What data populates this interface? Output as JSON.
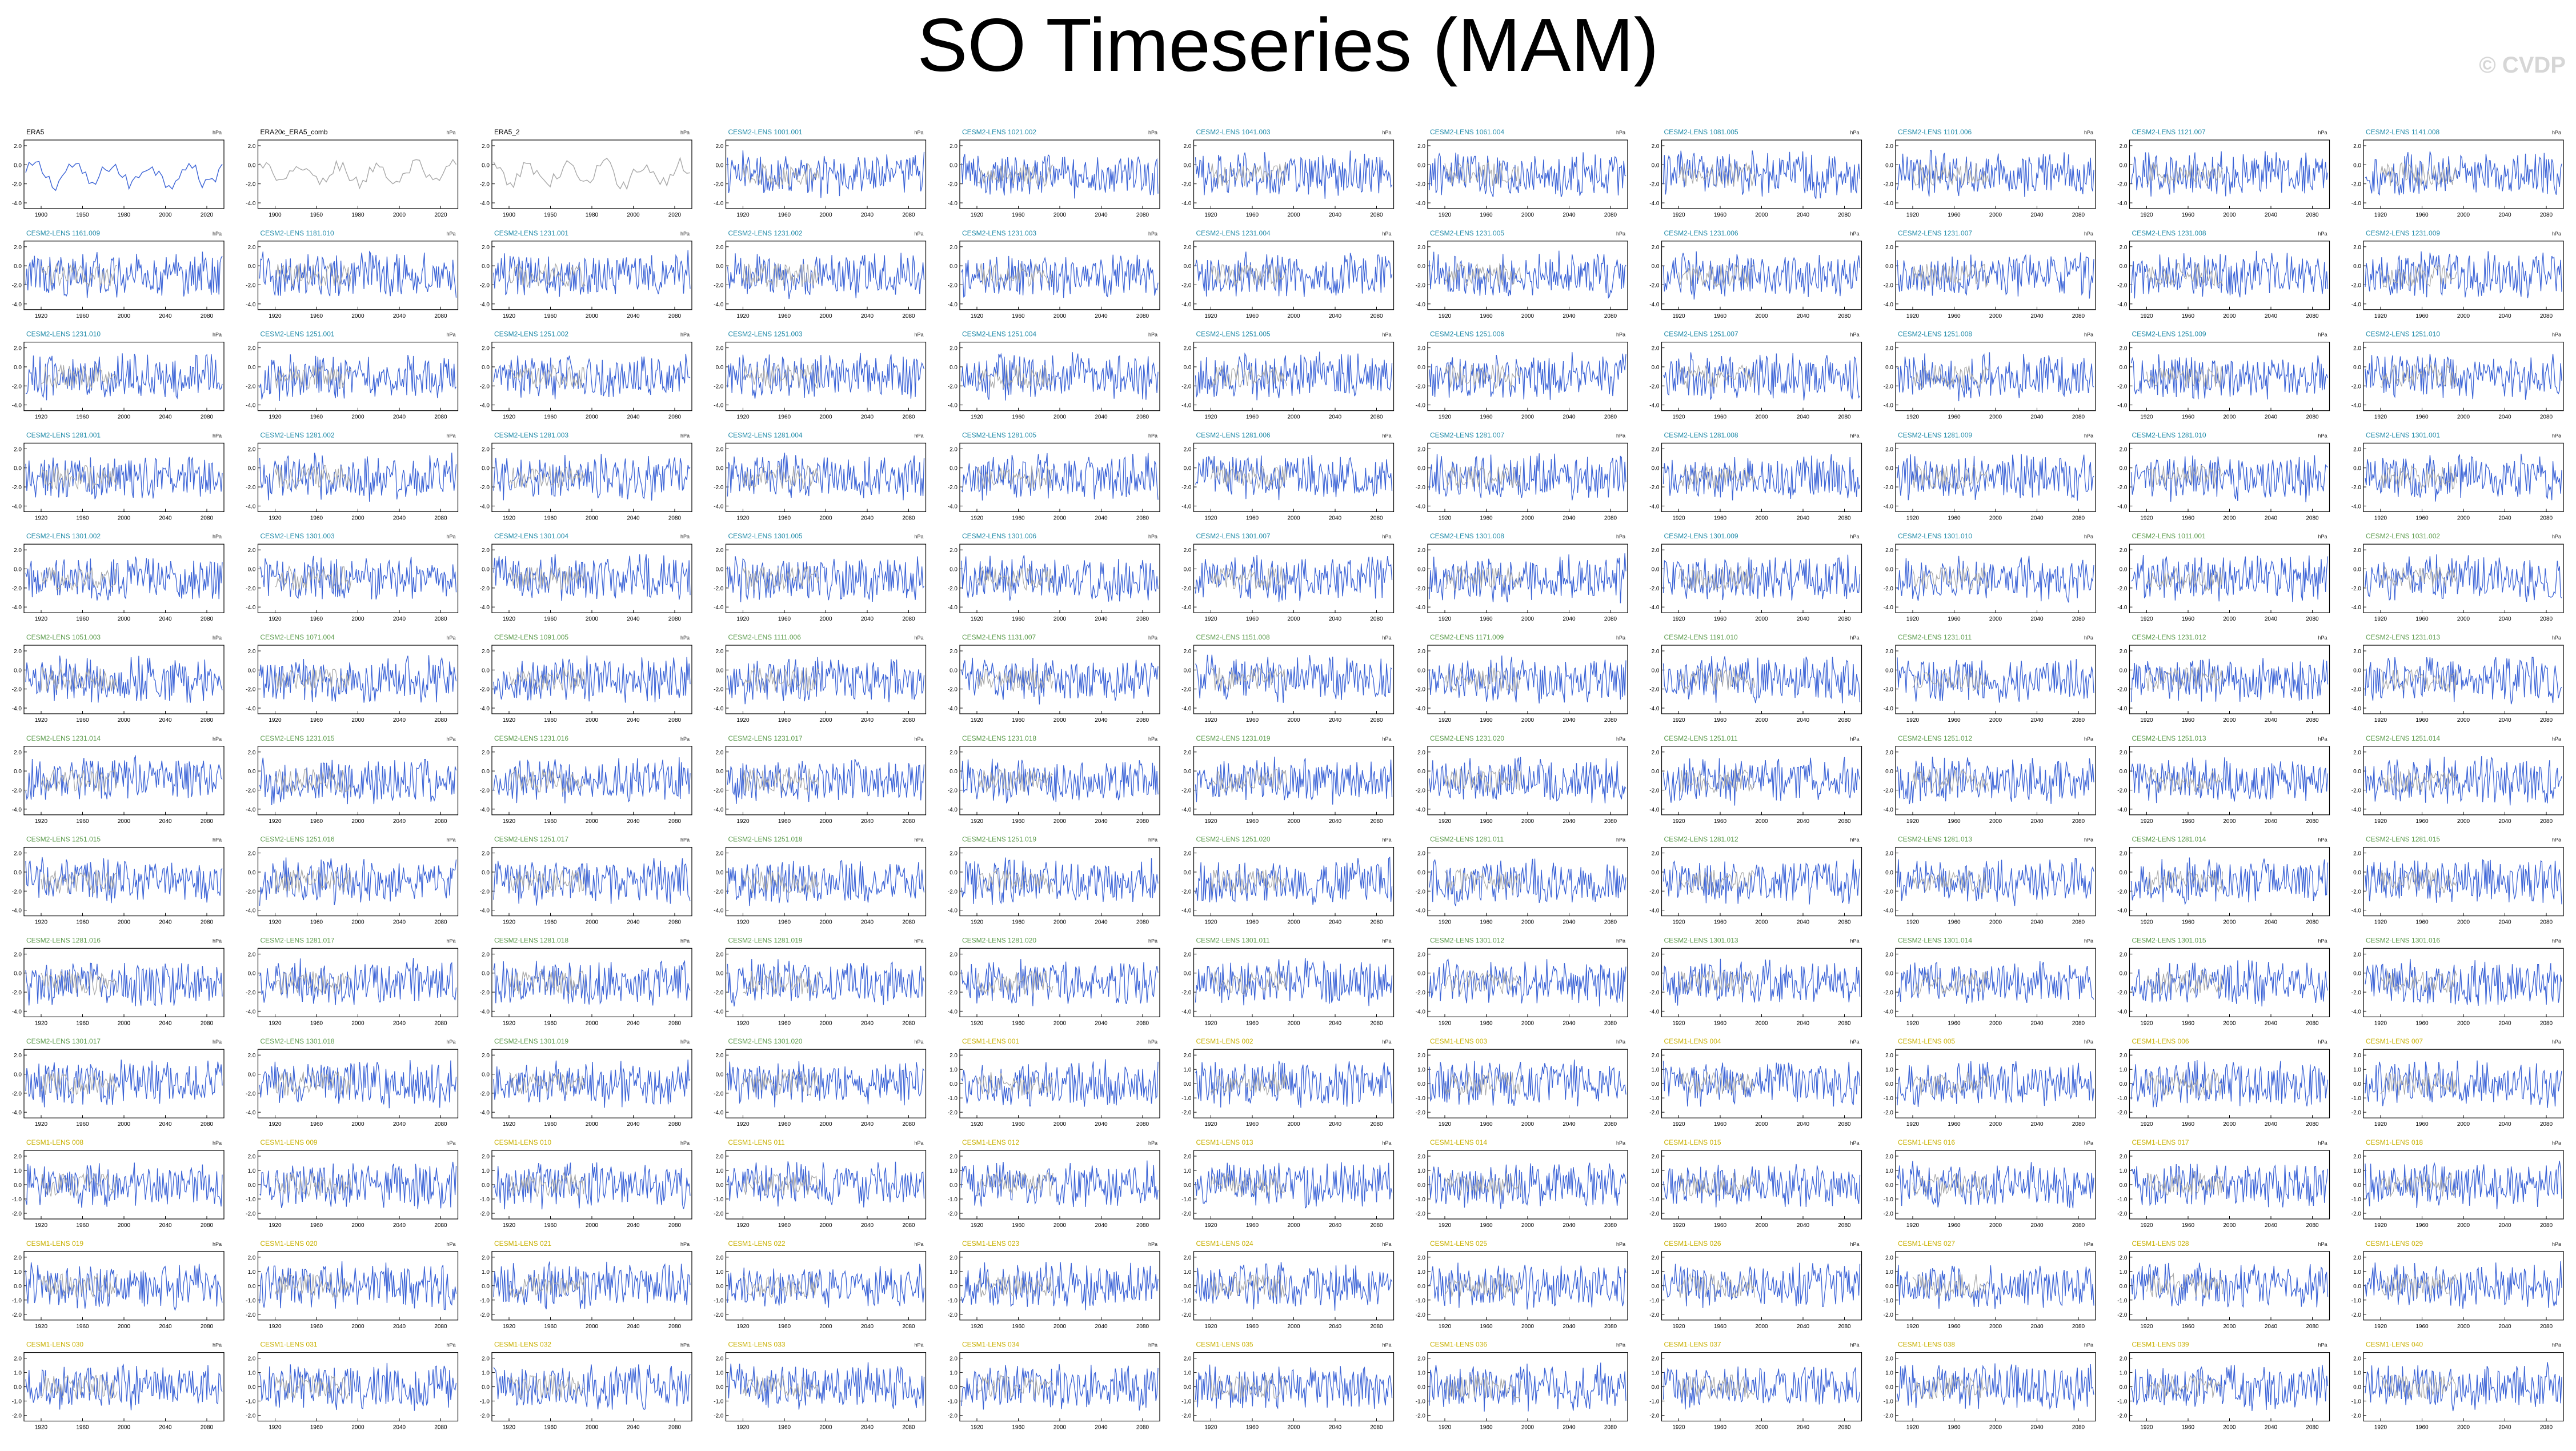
{
  "page": {
    "title": "SO Timeseries (MAM)",
    "watermark": "© CVDP"
  },
  "colors": {
    "ens_line": "#3b63d6",
    "obs_line": "#000000",
    "ens_mean": "#a8a8a8",
    "label_obs": "#000000",
    "label_cesm2": "#1f8aa8",
    "label_cesm2_smbb": "#5a9a4a",
    "label_cesm1": "#c8b000"
  },
  "chart_data": {
    "type": "line",
    "layout": "small-multiples grid, 11 columns x 13 rows",
    "panel_units": "hPa",
    "obs_xticks": [
      "1900",
      "1950",
      "1980",
      "2000",
      "2020"
    ],
    "model_xticks": [
      "1920",
      "1960",
      "2000",
      "2040",
      "2080"
    ],
    "model_yticks": [
      "2.0",
      "0.0",
      "-2.0",
      "-4.0"
    ],
    "cesm1_yticks": [
      "2.0",
      "1.0",
      "0.0",
      "-1.0",
      "-2.0"
    ],
    "panels": [
      {
        "title": "ERA5",
        "group": "obs"
      },
      {
        "title": "ERA20c_ERA5_comb",
        "group": "obs"
      },
      {
        "title": "ERA5_2",
        "group": "obs"
      },
      {
        "title": "CESM2-LENS 1001.001",
        "group": "cesm2"
      },
      {
        "title": "CESM2-LENS 1021.002",
        "group": "cesm2"
      },
      {
        "title": "CESM2-LENS 1041.003",
        "group": "cesm2"
      },
      {
        "title": "CESM2-LENS 1061.004",
        "group": "cesm2"
      },
      {
        "title": "CESM2-LENS 1081.005",
        "group": "cesm2"
      },
      {
        "title": "CESM2-LENS 1101.006",
        "group": "cesm2"
      },
      {
        "title": "CESM2-LENS 1121.007",
        "group": "cesm2"
      },
      {
        "title": "CESM2-LENS 1141.008",
        "group": "cesm2"
      },
      {
        "title": "CESM2-LENS 1161.009",
        "group": "cesm2"
      },
      {
        "title": "CESM2-LENS 1181.010",
        "group": "cesm2"
      },
      {
        "title": "CESM2-LENS 1231.001",
        "group": "cesm2"
      },
      {
        "title": "CESM2-LENS 1231.002",
        "group": "cesm2"
      },
      {
        "title": "CESM2-LENS 1231.003",
        "group": "cesm2"
      },
      {
        "title": "CESM2-LENS 1231.004",
        "group": "cesm2"
      },
      {
        "title": "CESM2-LENS 1231.005",
        "group": "cesm2"
      },
      {
        "title": "CESM2-LENS 1231.006",
        "group": "cesm2"
      },
      {
        "title": "CESM2-LENS 1231.007",
        "group": "cesm2"
      },
      {
        "title": "CESM2-LENS 1231.008",
        "group": "cesm2"
      },
      {
        "title": "CESM2-LENS 1231.009",
        "group": "cesm2"
      },
      {
        "title": "CESM2-LENS 1231.010",
        "group": "cesm2"
      },
      {
        "title": "CESM2-LENS 1251.001",
        "group": "cesm2"
      },
      {
        "title": "CESM2-LENS 1251.002",
        "group": "cesm2"
      },
      {
        "title": "CESM2-LENS 1251.003",
        "group": "cesm2"
      },
      {
        "title": "CESM2-LENS 1251.004",
        "group": "cesm2"
      },
      {
        "title": "CESM2-LENS 1251.005",
        "group": "cesm2"
      },
      {
        "title": "CESM2-LENS 1251.006",
        "group": "cesm2"
      },
      {
        "title": "CESM2-LENS 1251.007",
        "group": "cesm2"
      },
      {
        "title": "CESM2-LENS 1251.008",
        "group": "cesm2"
      },
      {
        "title": "CESM2-LENS 1251.009",
        "group": "cesm2"
      },
      {
        "title": "CESM2-LENS 1251.010",
        "group": "cesm2"
      },
      {
        "title": "CESM2-LENS 1281.001",
        "group": "cesm2"
      },
      {
        "title": "CESM2-LENS 1281.002",
        "group": "cesm2"
      },
      {
        "title": "CESM2-LENS 1281.003",
        "group": "cesm2"
      },
      {
        "title": "CESM2-LENS 1281.004",
        "group": "cesm2"
      },
      {
        "title": "CESM2-LENS 1281.005",
        "group": "cesm2"
      },
      {
        "title": "CESM2-LENS 1281.006",
        "group": "cesm2"
      },
      {
        "title": "CESM2-LENS 1281.007",
        "group": "cesm2"
      },
      {
        "title": "CESM2-LENS 1281.008",
        "group": "cesm2"
      },
      {
        "title": "CESM2-LENS 1281.009",
        "group": "cesm2"
      },
      {
        "title": "CESM2-LENS 1281.010",
        "group": "cesm2"
      },
      {
        "title": "CESM2-LENS 1301.001",
        "group": "cesm2"
      },
      {
        "title": "CESM2-LENS 1301.002",
        "group": "cesm2"
      },
      {
        "title": "CESM2-LENS 1301.003",
        "group": "cesm2"
      },
      {
        "title": "CESM2-LENS 1301.004",
        "group": "cesm2"
      },
      {
        "title": "CESM2-LENS 1301.005",
        "group": "cesm2"
      },
      {
        "title": "CESM2-LENS 1301.006",
        "group": "cesm2"
      },
      {
        "title": "CESM2-LENS 1301.007",
        "group": "cesm2"
      },
      {
        "title": "CESM2-LENS 1301.008",
        "group": "cesm2"
      },
      {
        "title": "CESM2-LENS 1301.009",
        "group": "cesm2"
      },
      {
        "title": "CESM2-LENS 1301.010",
        "group": "cesm2"
      },
      {
        "title": "CESM2-LENS 1011.001",
        "group": "cesm2_smbb"
      },
      {
        "title": "CESM2-LENS 1031.002",
        "group": "cesm2_smbb"
      },
      {
        "title": "CESM2-LENS 1051.003",
        "group": "cesm2_smbb"
      },
      {
        "title": "CESM2-LENS 1071.004",
        "group": "cesm2_smbb"
      },
      {
        "title": "CESM2-LENS 1091.005",
        "group": "cesm2_smbb"
      },
      {
        "title": "CESM2-LENS 1111.006",
        "group": "cesm2_smbb"
      },
      {
        "title": "CESM2-LENS 1131.007",
        "group": "cesm2_smbb"
      },
      {
        "title": "CESM2-LENS 1151.008",
        "group": "cesm2_smbb"
      },
      {
        "title": "CESM2-LENS 1171.009",
        "group": "cesm2_smbb"
      },
      {
        "title": "CESM2-LENS 1191.010",
        "group": "cesm2_smbb"
      },
      {
        "title": "CESM2-LENS 1231.011",
        "group": "cesm2_smbb"
      },
      {
        "title": "CESM2-LENS 1231.012",
        "group": "cesm2_smbb"
      },
      {
        "title": "CESM2-LENS 1231.013",
        "group": "cesm2_smbb"
      },
      {
        "title": "CESM2-LENS 1231.014",
        "group": "cesm2_smbb"
      },
      {
        "title": "CESM2-LENS 1231.015",
        "group": "cesm2_smbb"
      },
      {
        "title": "CESM2-LENS 1231.016",
        "group": "cesm2_smbb"
      },
      {
        "title": "CESM2-LENS 1231.017",
        "group": "cesm2_smbb"
      },
      {
        "title": "CESM2-LENS 1231.018",
        "group": "cesm2_smbb"
      },
      {
        "title": "CESM2-LENS 1231.019",
        "group": "cesm2_smbb"
      },
      {
        "title": "CESM2-LENS 1231.020",
        "group": "cesm2_smbb"
      },
      {
        "title": "CESM2-LENS 1251.011",
        "group": "cesm2_smbb"
      },
      {
        "title": "CESM2-LENS 1251.012",
        "group": "cesm2_smbb"
      },
      {
        "title": "CESM2-LENS 1251.013",
        "group": "cesm2_smbb"
      },
      {
        "title": "CESM2-LENS 1251.014",
        "group": "cesm2_smbb"
      },
      {
        "title": "CESM2-LENS 1251.015",
        "group": "cesm2_smbb"
      },
      {
        "title": "CESM2-LENS 1251.016",
        "group": "cesm2_smbb"
      },
      {
        "title": "CESM2-LENS 1251.017",
        "group": "cesm2_smbb"
      },
      {
        "title": "CESM2-LENS 1251.018",
        "group": "cesm2_smbb"
      },
      {
        "title": "CESM2-LENS 1251.019",
        "group": "cesm2_smbb"
      },
      {
        "title": "CESM2-LENS 1251.020",
        "group": "cesm2_smbb"
      },
      {
        "title": "CESM2-LENS 1281.011",
        "group": "cesm2_smbb"
      },
      {
        "title": "CESM2-LENS 1281.012",
        "group": "cesm2_smbb"
      },
      {
        "title": "CESM2-LENS 1281.013",
        "group": "cesm2_smbb"
      },
      {
        "title": "CESM2-LENS 1281.014",
        "group": "cesm2_smbb"
      },
      {
        "title": "CESM2-LENS 1281.015",
        "group": "cesm2_smbb"
      },
      {
        "title": "CESM2-LENS 1281.016",
        "group": "cesm2_smbb"
      },
      {
        "title": "CESM2-LENS 1281.017",
        "group": "cesm2_smbb"
      },
      {
        "title": "CESM2-LENS 1281.018",
        "group": "cesm2_smbb"
      },
      {
        "title": "CESM2-LENS 1281.019",
        "group": "cesm2_smbb"
      },
      {
        "title": "CESM2-LENS 1281.020",
        "group": "cesm2_smbb"
      },
      {
        "title": "CESM2-LENS 1301.011",
        "group": "cesm2_smbb"
      },
      {
        "title": "CESM2-LENS 1301.012",
        "group": "cesm2_smbb"
      },
      {
        "title": "CESM2-LENS 1301.013",
        "group": "cesm2_smbb"
      },
      {
        "title": "CESM2-LENS 1301.014",
        "group": "cesm2_smbb"
      },
      {
        "title": "CESM2-LENS 1301.015",
        "group": "cesm2_smbb"
      },
      {
        "title": "CESM2-LENS 1301.016",
        "group": "cesm2_smbb"
      },
      {
        "title": "CESM2-LENS 1301.017",
        "group": "cesm2_smbb"
      },
      {
        "title": "CESM2-LENS 1301.018",
        "group": "cesm2_smbb"
      },
      {
        "title": "CESM2-LENS 1301.019",
        "group": "cesm2_smbb"
      },
      {
        "title": "CESM2-LENS 1301.020",
        "group": "cesm2_smbb"
      },
      {
        "title": "CESM1-LENS 001",
        "group": "cesm1"
      },
      {
        "title": "CESM1-LENS 002",
        "group": "cesm1"
      },
      {
        "title": "CESM1-LENS 003",
        "group": "cesm1"
      },
      {
        "title": "CESM1-LENS 004",
        "group": "cesm1"
      },
      {
        "title": "CESM1-LENS 005",
        "group": "cesm1"
      },
      {
        "title": "CESM1-LENS 006",
        "group": "cesm1"
      },
      {
        "title": "CESM1-LENS 007",
        "group": "cesm1"
      },
      {
        "title": "CESM1-LENS 008",
        "group": "cesm1"
      },
      {
        "title": "CESM1-LENS 009",
        "group": "cesm1"
      },
      {
        "title": "CESM1-LENS 010",
        "group": "cesm1"
      },
      {
        "title": "CESM1-LENS 011",
        "group": "cesm1"
      },
      {
        "title": "CESM1-LENS 012",
        "group": "cesm1"
      },
      {
        "title": "CESM1-LENS 013",
        "group": "cesm1"
      },
      {
        "title": "CESM1-LENS 014",
        "group": "cesm1"
      },
      {
        "title": "CESM1-LENS 015",
        "group": "cesm1"
      },
      {
        "title": "CESM1-LENS 016",
        "group": "cesm1"
      },
      {
        "title": "CESM1-LENS 017",
        "group": "cesm1"
      },
      {
        "title": "CESM1-LENS 018",
        "group": "cesm1"
      },
      {
        "title": "CESM1-LENS 019",
        "group": "cesm1"
      },
      {
        "title": "CESM1-LENS 020",
        "group": "cesm1"
      },
      {
        "title": "CESM1-LENS 021",
        "group": "cesm1"
      },
      {
        "title": "CESM1-LENS 022",
        "group": "cesm1"
      },
      {
        "title": "CESM1-LENS 023",
        "group": "cesm1"
      },
      {
        "title": "CESM1-LENS 024",
        "group": "cesm1"
      },
      {
        "title": "CESM1-LENS 025",
        "group": "cesm1"
      },
      {
        "title": "CESM1-LENS 026",
        "group": "cesm1"
      },
      {
        "title": "CESM1-LENS 027",
        "group": "cesm1"
      },
      {
        "title": "CESM1-LENS 028",
        "group": "cesm1"
      },
      {
        "title": "CESM1-LENS 029",
        "group": "cesm1"
      },
      {
        "title": "CESM1-LENS 030",
        "group": "cesm1"
      },
      {
        "title": "CESM1-LENS 031",
        "group": "cesm1"
      },
      {
        "title": "CESM1-LENS 032",
        "group": "cesm1"
      },
      {
        "title": "CESM1-LENS 033",
        "group": "cesm1"
      },
      {
        "title": "CESM1-LENS 034",
        "group": "cesm1"
      },
      {
        "title": "CESM1-LENS 035",
        "group": "cesm1"
      },
      {
        "title": "CESM1-LENS 036",
        "group": "cesm1"
      },
      {
        "title": "CESM1-LENS 037",
        "group": "cesm1"
      },
      {
        "title": "CESM1-LENS 038",
        "group": "cesm1"
      },
      {
        "title": "CESM1-LENS 039",
        "group": "cesm1"
      },
      {
        "title": "CESM1-LENS 040",
        "group": "cesm1"
      }
    ]
  }
}
